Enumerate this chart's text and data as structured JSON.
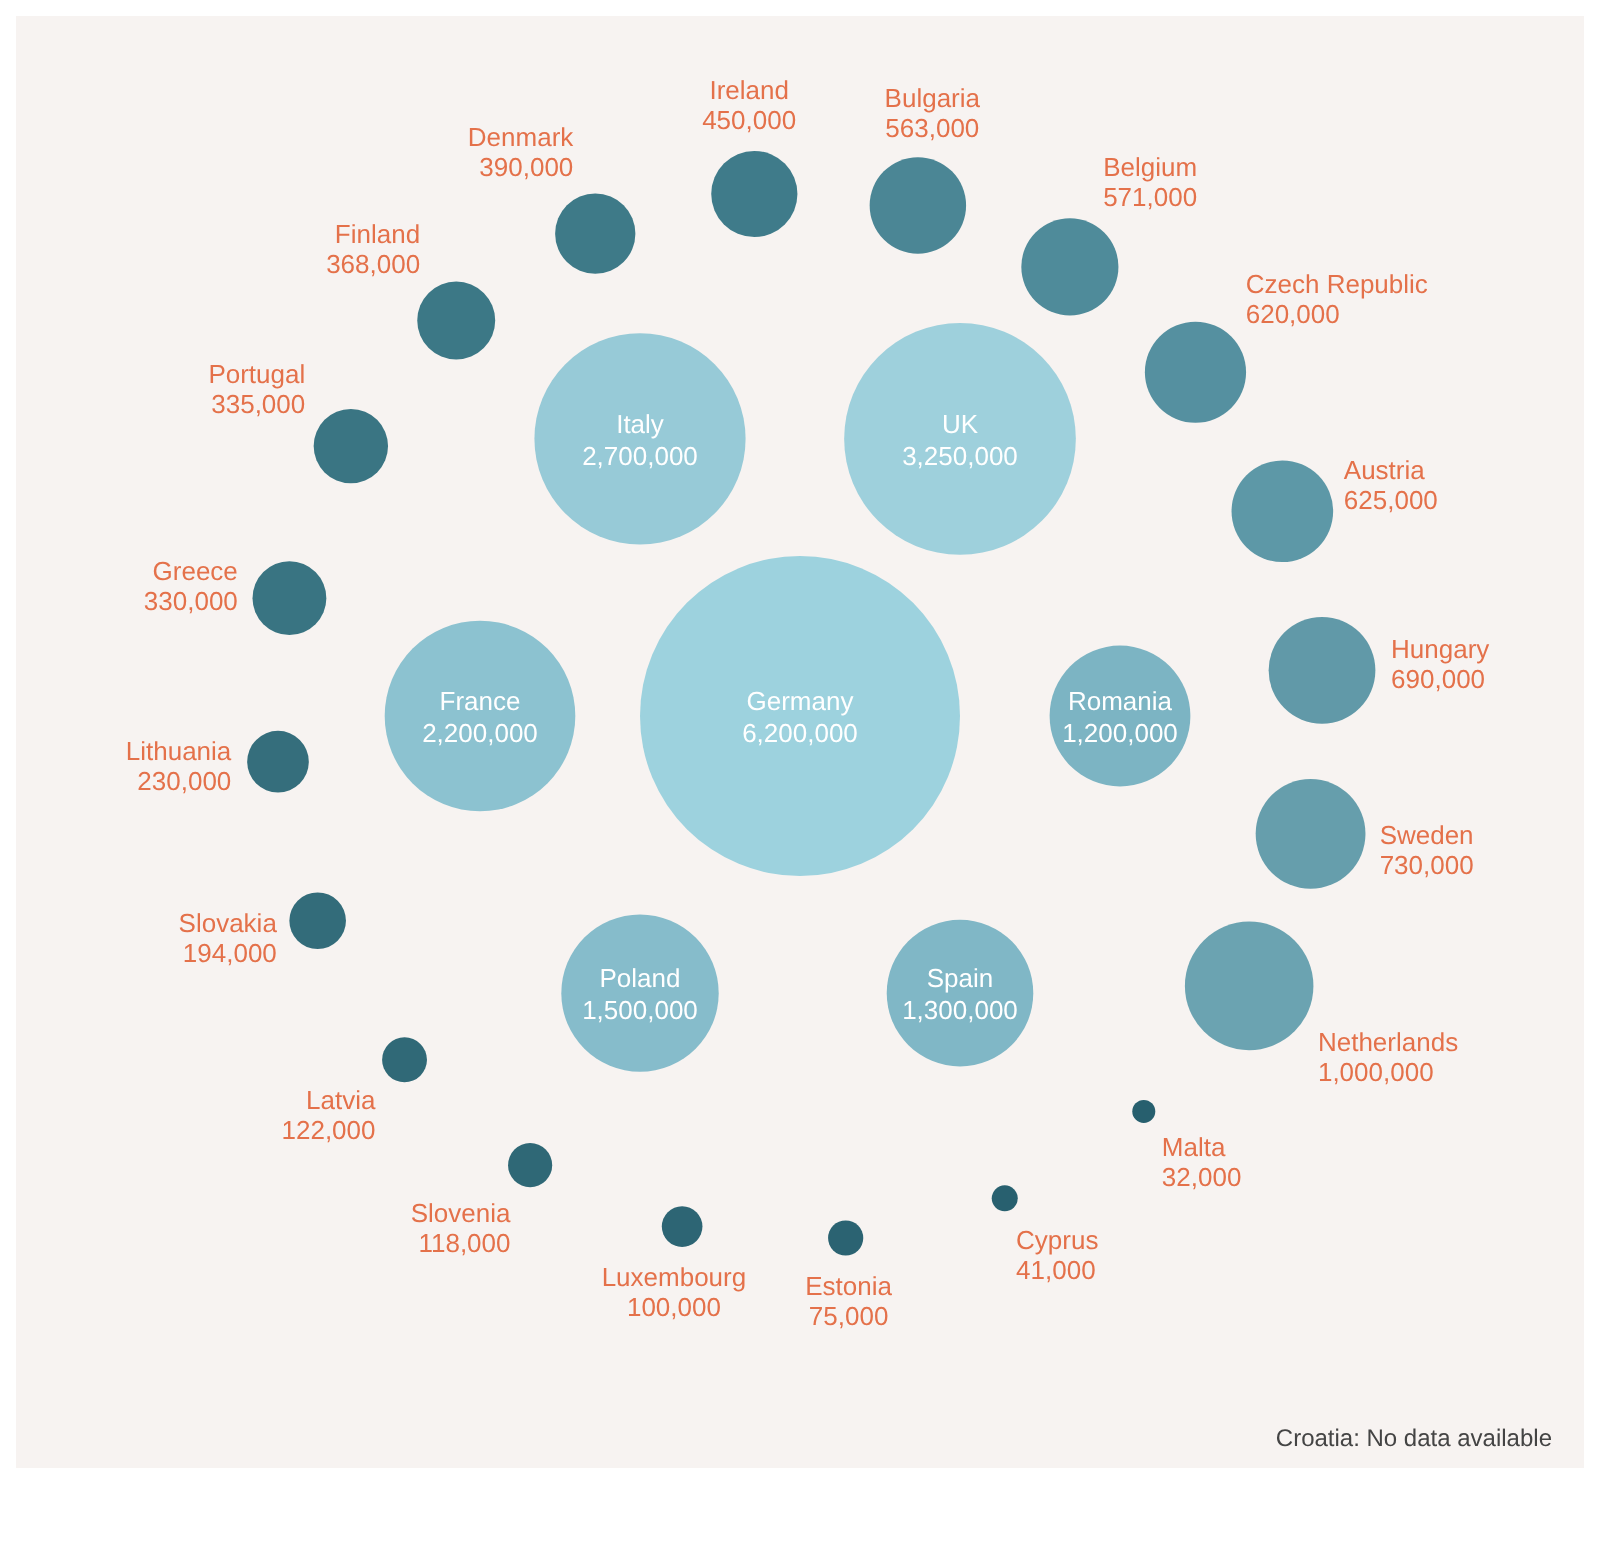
{
  "chart_data": {
    "type": "other",
    "categories": [
      "Germany",
      "UK",
      "Romania",
      "Spain",
      "Poland",
      "France",
      "Italy",
      "Ireland",
      "Bulgaria",
      "Belgium",
      "Czech Republic",
      "Austria",
      "Hungary",
      "Sweden",
      "Netherlands",
      "Malta",
      "Cyprus",
      "Estonia",
      "Luxembourg",
      "Slovenia",
      "Latvia",
      "Slovakia",
      "Lithuania",
      "Greece",
      "Portugal",
      "Finland",
      "Denmark"
    ],
    "values": [
      6200000,
      3250000,
      1200000,
      1300000,
      1500000,
      2200000,
      2700000,
      450000,
      563000,
      571000,
      620000,
      625000,
      690000,
      730000,
      1000000,
      32000,
      41000,
      75000,
      100000,
      118000,
      122000,
      194000,
      230000,
      330000,
      335000,
      368000,
      390000
    ],
    "colors": [
      "#9dd2de",
      "#9ed0dc",
      "#7cb4c3",
      "#80b7c6",
      "#86bccb",
      "#8cc2d0",
      "#97cad7",
      "#3f7b8a",
      "#4b8695",
      "#4f8b9a",
      "#5590a0",
      "#5d98a7",
      "#6199a8",
      "#669eac",
      "#6ba3b1",
      "#275f6e",
      "#28606f",
      "#2b6372",
      "#2d6574",
      "#2f6876",
      "#306977",
      "#336c7a",
      "#356e7c",
      "#397482",
      "#3a7583",
      "#3c7886",
      "#3e7a88"
    ],
    "value_labels": [
      "6,200,000",
      "3,250,000",
      "1,200,000",
      "1,300,000",
      "1,500,000",
      "2,200,000",
      "2,700,000",
      "450,000",
      "563,000",
      "571,000",
      "620,000",
      "625,000",
      "690,000",
      "730,000",
      "1,000,000",
      "32,000",
      "41,000",
      "75,000",
      "100,000",
      "118,000",
      "122,000",
      "194,000",
      "230,000",
      "330,000",
      "335,000",
      "368,000",
      "390,000"
    ],
    "annotations": [
      "Croatia: No data available"
    ]
  }
}
